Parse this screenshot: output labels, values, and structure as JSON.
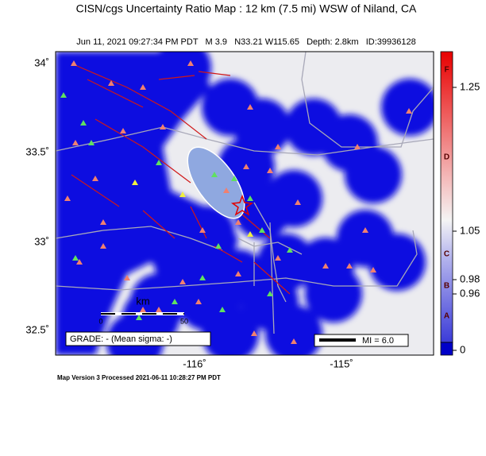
{
  "header": {
    "title": "CISN/cgs Uncertainty Ratio Map : 12 km (7.5 mi) WSW of Niland, CA",
    "subtitle": "Jun 11, 2021 09:27:34 PM PDT   M 3.9   N33.21 W115.65   Depth: 2.8km   ID:39936128"
  },
  "map": {
    "lat_labels": [
      "34˚",
      "33.5˚",
      "33˚",
      "32.5˚"
    ],
    "lon_labels": [
      "-116˚",
      "-115˚"
    ],
    "scale_unit": "km",
    "scale_start": "0",
    "scale_end": "50",
    "grade": "GRADE: - (Mean sigma: -)",
    "legend": "MI = 6.0"
  },
  "colorbar": {
    "grades": [
      "F",
      "D",
      "C",
      "B",
      "A"
    ],
    "values": [
      "1.25",
      "1.05",
      "0.98",
      "0.96",
      "0"
    ]
  },
  "footer": "Map Version 3 Processed 2021-06-11 10:28:27 PM PDT"
}
